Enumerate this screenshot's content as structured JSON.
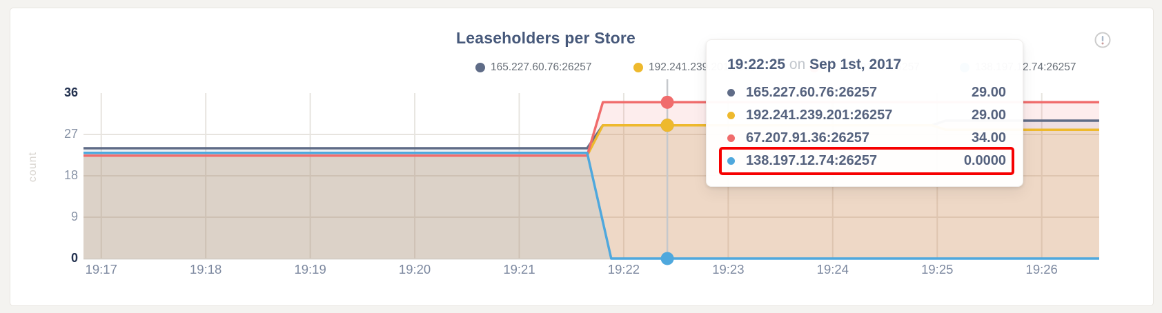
{
  "card": {
    "title": "Leaseholders per Store",
    "alert_icon": "circled-exclamation-icon"
  },
  "axes": {
    "y_label": "count",
    "y_ticks": [
      0,
      9,
      18,
      27,
      36
    ],
    "x_ticks": [
      "19:17",
      "19:18",
      "19:19",
      "19:20",
      "19:21",
      "19:22",
      "19:23",
      "19:24",
      "19:25",
      "19:26"
    ]
  },
  "legend": {
    "items": [
      {
        "label": "165.227.60.76:26257",
        "color": "#5f6c87"
      },
      {
        "label": "192.241.239.201:26257",
        "color": "#eeb92d"
      },
      {
        "label": "67.207.91.36:26257",
        "color": "#f06c6c"
      },
      {
        "label": "138.197.12.74:26257",
        "color": "#4fa8dd"
      }
    ]
  },
  "tooltip": {
    "time": "19:22:25",
    "on_text": "on",
    "date": "Sep 1st, 2017",
    "highlight_color": "#f60000",
    "rows": [
      {
        "name": "165.227.60.76:26257",
        "value": "29.00",
        "color": "#5f6c87",
        "highlighted": false
      },
      {
        "name": "192.241.239.201:26257",
        "value": "29.00",
        "color": "#eeb92d",
        "highlighted": false
      },
      {
        "name": "67.207.91.36:26257",
        "value": "34.00",
        "color": "#f06c6c",
        "highlighted": false
      },
      {
        "name": "138.197.12.74:26257",
        "value": "0.0000",
        "color": "#4fa8dd",
        "highlighted": true
      }
    ]
  },
  "chart_data": {
    "type": "area",
    "title": "Leaseholders per Store",
    "xlabel": "",
    "ylabel": "count",
    "ylim": [
      0,
      36
    ],
    "y_ticks": [
      0,
      9,
      18,
      27,
      36
    ],
    "x_tick_labels": [
      "19:17",
      "19:18",
      "19:19",
      "19:20",
      "19:21",
      "19:22",
      "19:23",
      "19:24",
      "19:25",
      "19:26"
    ],
    "x_tick_minutes": [
      17,
      18,
      19,
      20,
      21,
      22,
      23,
      24,
      25,
      26
    ],
    "x_domain_minutes": [
      16.83,
      26.55
    ],
    "grid": true,
    "legend_position": "top",
    "series": [
      {
        "name": "165.227.60.76:26257",
        "color": "#5f6c87",
        "points": [
          [
            16.83,
            24
          ],
          [
            21.65,
            24
          ],
          [
            21.8,
            29
          ],
          [
            24.95,
            29
          ],
          [
            25.08,
            30
          ],
          [
            26.55,
            30
          ]
        ]
      },
      {
        "name": "192.241.239.201:26257",
        "color": "#eeb92d",
        "points": [
          [
            16.83,
            22.4
          ],
          [
            21.65,
            22.4
          ],
          [
            21.8,
            29
          ],
          [
            24.95,
            29
          ],
          [
            25.08,
            28
          ],
          [
            26.55,
            28
          ]
        ]
      },
      {
        "name": "67.207.91.36:26257",
        "color": "#f06c6c",
        "points": [
          [
            16.83,
            22.4
          ],
          [
            21.65,
            22.4
          ],
          [
            21.8,
            34
          ],
          [
            26.55,
            34
          ]
        ]
      },
      {
        "name": "138.197.12.74:26257",
        "color": "#4fa8dd",
        "points": [
          [
            16.83,
            23
          ],
          [
            21.65,
            23
          ],
          [
            21.88,
            0
          ],
          [
            26.55,
            0
          ]
        ]
      }
    ],
    "hover": {
      "time": "19:22:25",
      "date": "Sep 1st, 2017",
      "time_minutes": 22.417,
      "values": [
        29,
        29,
        34,
        0
      ]
    }
  },
  "colors": {
    "title_text": "#46587a",
    "tooltip_text": "#55627e",
    "axis_tick": "#8792a5",
    "axis_minmax": "#22304e",
    "grid": "#e7e4df",
    "hover_line": "#c5c8cc",
    "page_bg": "#f4f3f0"
  }
}
